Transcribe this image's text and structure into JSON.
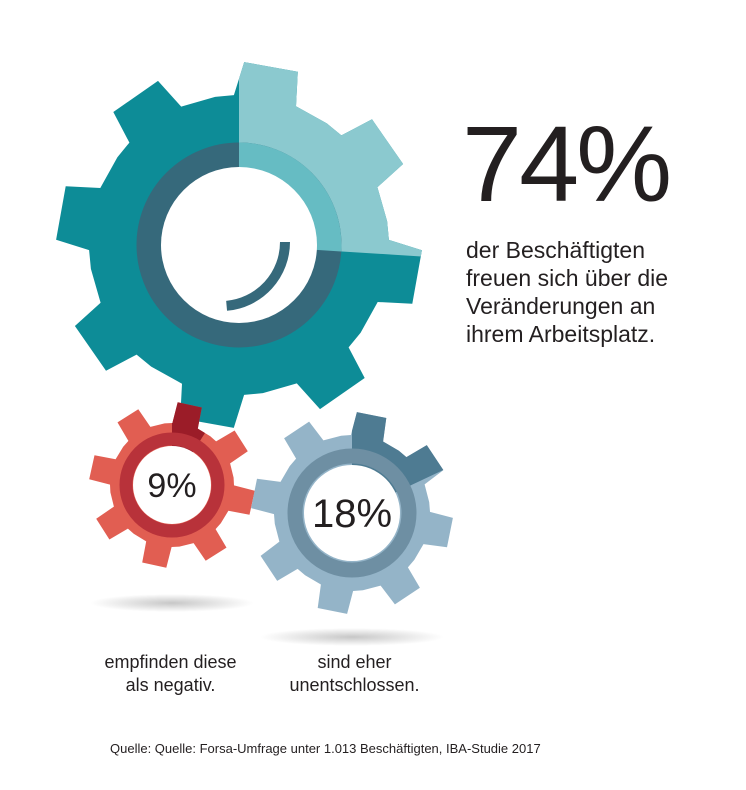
{
  "chart_data": [
    {
      "type": "pie",
      "name": "freuen",
      "value": 74,
      "unit": "%",
      "label": "74%",
      "description_lines": [
        "der Beschäftigten",
        "freuen sich über die",
        "Veränderungen an",
        "ihrem Arbeitsplatz."
      ],
      "colors": {
        "main": "#0d8c97",
        "segment": "#8bc9cf",
        "ring": "#36697b",
        "ring_light": "#66bcc3"
      }
    },
    {
      "type": "pie",
      "name": "negativ",
      "value": 9,
      "unit": "%",
      "label": "9%",
      "description_lines": [
        "empfinden diese",
        "als negativ."
      ],
      "colors": {
        "main": "#e15e52",
        "segment": "#9b1c28",
        "ring": "#b8323a",
        "ring_light": "#b8323a"
      }
    },
    {
      "type": "pie",
      "name": "unentschlossen",
      "value": 18,
      "unit": "%",
      "label": "18%",
      "description_lines": [
        "sind eher",
        "unentschlossen."
      ],
      "colors": {
        "main": "#94b4c8",
        "segment": "#4e7b92",
        "ring": "#6e8fa3",
        "ring_light": "#6e8fa3"
      }
    }
  ],
  "source": "Quelle: Quelle: Forsa-Umfrage unter 1.013 Beschäftigten, IBA-Studie 2017"
}
